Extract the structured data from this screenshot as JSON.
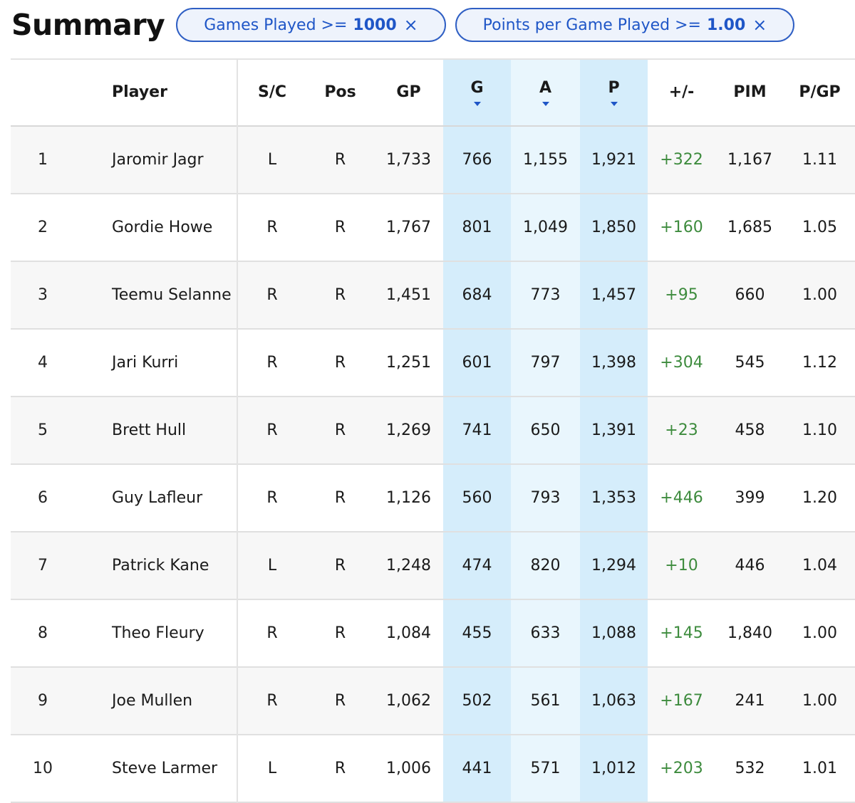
{
  "header": {
    "title": "Summary",
    "filters": [
      {
        "label": "Games Played >=",
        "value": "1000",
        "close": "×"
      },
      {
        "label": "Points per Game Played >=",
        "value": "1.00",
        "close": "×"
      }
    ]
  },
  "table": {
    "columns": [
      "",
      "Player",
      "S/C",
      "Pos",
      "GP",
      "G",
      "A",
      "P",
      "+/-",
      "PIM",
      "P/GP"
    ],
    "sorted_columns": [
      "G",
      "A",
      "P"
    ],
    "accent_color": "#1f56c7",
    "positive_color": "#3d8b3d",
    "rows": [
      {
        "rank": "1",
        "player": "Jaromir Jagr",
        "sc": "L",
        "pos": "R",
        "gp": "1,733",
        "g": "766",
        "a": "1,155",
        "p": "1,921",
        "pm": "+322",
        "pim": "1,167",
        "pgp": "1.11"
      },
      {
        "rank": "2",
        "player": "Gordie Howe",
        "sc": "R",
        "pos": "R",
        "gp": "1,767",
        "g": "801",
        "a": "1,049",
        "p": "1,850",
        "pm": "+160",
        "pim": "1,685",
        "pgp": "1.05"
      },
      {
        "rank": "3",
        "player": "Teemu Selanne",
        "sc": "R",
        "pos": "R",
        "gp": "1,451",
        "g": "684",
        "a": "773",
        "p": "1,457",
        "pm": "+95",
        "pim": "660",
        "pgp": "1.00"
      },
      {
        "rank": "4",
        "player": "Jari Kurri",
        "sc": "R",
        "pos": "R",
        "gp": "1,251",
        "g": "601",
        "a": "797",
        "p": "1,398",
        "pm": "+304",
        "pim": "545",
        "pgp": "1.12"
      },
      {
        "rank": "5",
        "player": "Brett Hull",
        "sc": "R",
        "pos": "R",
        "gp": "1,269",
        "g": "741",
        "a": "650",
        "p": "1,391",
        "pm": "+23",
        "pim": "458",
        "pgp": "1.10"
      },
      {
        "rank": "6",
        "player": "Guy Lafleur",
        "sc": "R",
        "pos": "R",
        "gp": "1,126",
        "g": "560",
        "a": "793",
        "p": "1,353",
        "pm": "+446",
        "pim": "399",
        "pgp": "1.20"
      },
      {
        "rank": "7",
        "player": "Patrick Kane",
        "sc": "L",
        "pos": "R",
        "gp": "1,248",
        "g": "474",
        "a": "820",
        "p": "1,294",
        "pm": "+10",
        "pim": "446",
        "pgp": "1.04"
      },
      {
        "rank": "8",
        "player": "Theo Fleury",
        "sc": "R",
        "pos": "R",
        "gp": "1,084",
        "g": "455",
        "a": "633",
        "p": "1,088",
        "pm": "+145",
        "pim": "1,840",
        "pgp": "1.00"
      },
      {
        "rank": "9",
        "player": "Joe Mullen",
        "sc": "R",
        "pos": "R",
        "gp": "1,062",
        "g": "502",
        "a": "561",
        "p": "1,063",
        "pm": "+167",
        "pim": "241",
        "pgp": "1.00"
      },
      {
        "rank": "10",
        "player": "Steve Larmer",
        "sc": "L",
        "pos": "R",
        "gp": "1,006",
        "g": "441",
        "a": "571",
        "p": "1,012",
        "pm": "+203",
        "pim": "532",
        "pgp": "1.01"
      }
    ]
  }
}
